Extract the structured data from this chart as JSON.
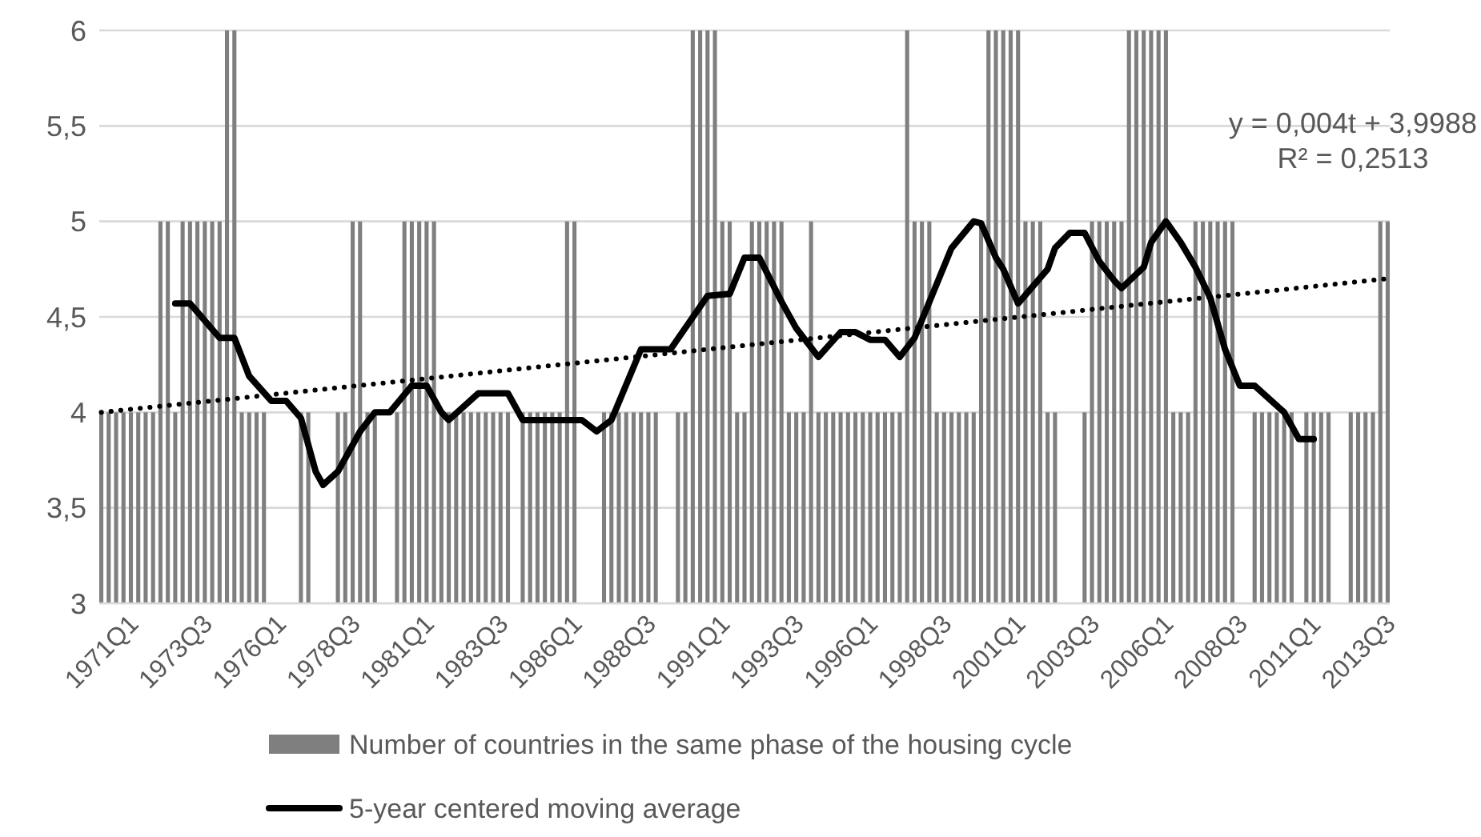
{
  "chart_data": {
    "type": "bar",
    "categories": [
      "1971Q1",
      null,
      null,
      null,
      null,
      null,
      null,
      null,
      null,
      null,
      "1973Q3",
      null,
      null,
      null,
      null,
      null,
      null,
      null,
      null,
      null,
      "1976Q1",
      null,
      null,
      null,
      null,
      null,
      null,
      null,
      null,
      null,
      "1978Q3",
      null,
      null,
      null,
      null,
      null,
      null,
      null,
      null,
      null,
      "1981Q1",
      null,
      null,
      null,
      null,
      null,
      null,
      null,
      null,
      null,
      "1983Q3",
      null,
      null,
      null,
      null,
      null,
      null,
      null,
      null,
      null,
      "1986Q1",
      null,
      null,
      null,
      null,
      null,
      null,
      null,
      null,
      null,
      "1988Q3",
      null,
      null,
      null,
      null,
      null,
      null,
      null,
      null,
      null,
      "1991Q1",
      null,
      null,
      null,
      null,
      null,
      null,
      null,
      null,
      null,
      "1993Q3",
      null,
      null,
      null,
      null,
      null,
      null,
      null,
      null,
      null,
      "1996Q1",
      null,
      null,
      null,
      null,
      null,
      null,
      null,
      null,
      null,
      "1998Q3",
      null,
      null,
      null,
      null,
      null,
      null,
      null,
      null,
      null,
      "2001Q1",
      null,
      null,
      null,
      null,
      null,
      null,
      null,
      null,
      null,
      "2003Q3",
      null,
      null,
      null,
      null,
      null,
      null,
      null,
      null,
      null,
      "2006Q1",
      null,
      null,
      null,
      null,
      null,
      null,
      null,
      null,
      null,
      "2008Q3",
      null,
      null,
      null,
      null,
      null,
      null,
      null,
      null,
      null,
      "2011Q1",
      null,
      null,
      null,
      null,
      null,
      null,
      null,
      null,
      null,
      "2013Q3",
      null,
      null,
      null,
      null
    ],
    "series": [
      {
        "name": "Number of countries in the same phase of the housing cycle",
        "color": "#7f7f7f",
        "values": [
          4,
          4,
          4,
          4,
          4,
          4,
          4,
          4,
          5,
          5,
          4,
          5,
          5,
          5,
          5,
          5,
          5,
          6,
          6,
          4,
          4,
          4,
          4,
          3,
          3,
          3,
          3,
          4,
          4,
          3,
          3,
          3,
          4,
          4,
          5,
          5,
          4,
          4,
          3,
          3,
          4,
          5,
          5,
          5,
          5,
          5,
          4,
          4,
          4,
          4,
          4,
          4,
          4,
          4,
          4,
          4,
          3,
          4,
          4,
          4,
          4,
          4,
          4,
          5,
          5,
          3,
          3,
          3,
          4,
          4,
          4,
          4,
          4,
          4,
          4,
          4,
          3,
          3,
          4,
          4,
          6,
          6,
          6,
          6,
          5,
          5,
          4,
          4,
          5,
          5,
          5,
          5,
          5,
          4,
          4,
          4,
          5,
          4,
          4,
          4,
          4,
          4,
          4,
          4,
          4,
          4,
          4,
          4,
          4,
          6,
          5,
          5,
          5,
          4,
          4,
          4,
          4,
          4,
          4,
          5,
          6,
          6,
          6,
          6,
          6,
          5,
          5,
          5,
          4,
          4,
          3,
          3,
          3,
          4,
          5,
          5,
          5,
          5,
          5,
          6,
          6,
          6,
          6,
          6,
          6,
          4,
          4,
          4,
          5,
          5,
          5,
          5,
          5,
          5,
          3,
          3,
          4,
          4,
          4,
          4,
          4,
          4,
          3,
          4,
          4,
          4,
          4,
          3,
          3,
          4,
          4,
          4,
          4,
          5,
          5
        ]
      },
      {
        "name": "5-year centered moving average",
        "type": "line",
        "color": "#000000",
        "line_style": "solid",
        "values": [
          null,
          null,
          null,
          null,
          null,
          null,
          null,
          null,
          null,
          null,
          4.57,
          null,
          4.57,
          null,
          null,
          null,
          4.39,
          null,
          4.39,
          null,
          4.19,
          null,
          null,
          4.06,
          null,
          4.06,
          null,
          3.97,
          null,
          3.69,
          3.62,
          null,
          3.69,
          null,
          null,
          3.9,
          null,
          4.0,
          null,
          4.0,
          null,
          null,
          4.14,
          null,
          4.14,
          null,
          4.0,
          3.96,
          null,
          null,
          null,
          4.1,
          null,
          null,
          null,
          4.1,
          null,
          3.96,
          null,
          null,
          null,
          null,
          null,
          null,
          null,
          3.96,
          null,
          3.9,
          null,
          3.96,
          null,
          null,
          null,
          4.33,
          null,
          null,
          null,
          4.33,
          null,
          null,
          null,
          null,
          4.61,
          null,
          null,
          4.62,
          null,
          4.81,
          null,
          4.81,
          null,
          null,
          4.58,
          null,
          4.44,
          null,
          null,
          4.29,
          null,
          null,
          4.42,
          null,
          4.42,
          null,
          4.38,
          null,
          4.38,
          null,
          4.29,
          null,
          4.39,
          null,
          null,
          null,
          null,
          4.86,
          null,
          null,
          5.0,
          4.99,
          null,
          4.81,
          4.75,
          null,
          4.57,
          null,
          null,
          null,
          4.75,
          4.86,
          null,
          4.94,
          null,
          4.94,
          null,
          4.79,
          null,
          4.69,
          4.65,
          null,
          null,
          4.76,
          4.89,
          null,
          5.0,
          null,
          4.89,
          null,
          4.76,
          null,
          4.6,
          null,
          4.33,
          null,
          4.14,
          null,
          4.14,
          null,
          null,
          null,
          4.0,
          null,
          3.86,
          null,
          3.86,
          null,
          null,
          null,
          null,
          null,
          null,
          null,
          null,
          null,
          null
        ]
      },
      {
        "type": "line",
        "color": "#000000",
        "line_style": "dotted",
        "values": [
          4.0,
          null,
          null,
          null,
          null,
          null,
          null,
          null,
          null,
          null,
          null,
          null,
          null,
          null,
          null,
          null,
          null,
          null,
          null,
          null,
          null,
          null,
          null,
          null,
          null,
          null,
          null,
          null,
          null,
          null,
          null,
          null,
          null,
          null,
          null,
          null,
          null,
          null,
          null,
          null,
          null,
          null,
          null,
          null,
          null,
          null,
          null,
          null,
          null,
          null,
          null,
          null,
          null,
          null,
          null,
          null,
          null,
          null,
          null,
          null,
          null,
          null,
          null,
          null,
          null,
          null,
          null,
          null,
          null,
          null,
          null,
          null,
          null,
          null,
          null,
          null,
          null,
          null,
          null,
          null,
          null,
          null,
          null,
          null,
          null,
          null,
          null,
          null,
          null,
          null,
          null,
          null,
          null,
          null,
          null,
          null,
          null,
          null,
          null,
          null,
          null,
          null,
          null,
          null,
          null,
          null,
          null,
          null,
          null,
          null,
          null,
          null,
          null,
          null,
          null,
          null,
          null,
          null,
          null,
          null,
          null,
          null,
          null,
          null,
          null,
          null,
          null,
          null,
          null,
          null,
          null,
          null,
          null,
          null,
          null,
          null,
          null,
          null,
          null,
          null,
          null,
          null,
          null,
          null,
          null,
          null,
          null,
          null,
          null,
          null,
          null,
          null,
          null,
          null,
          null,
          null,
          null,
          null,
          null,
          null,
          null,
          null,
          null,
          null,
          null,
          null,
          null,
          null,
          null,
          null,
          null,
          null,
          null,
          null,
          4.7
        ]
      }
    ],
    "ylim": [
      3,
      6
    ],
    "yticks": [
      3,
      {
        "value": 3.5,
        "label": "3,5"
      },
      4,
      {
        "value": 4.5,
        "label": "4,5"
      },
      5,
      {
        "value": 5.5,
        "label": "5,5"
      },
      6
    ],
    "grid": "y",
    "legend": "bottom",
    "annotations": [
      "y = 0,004t + 3,9988",
      "R² = 0,2513"
    ]
  }
}
